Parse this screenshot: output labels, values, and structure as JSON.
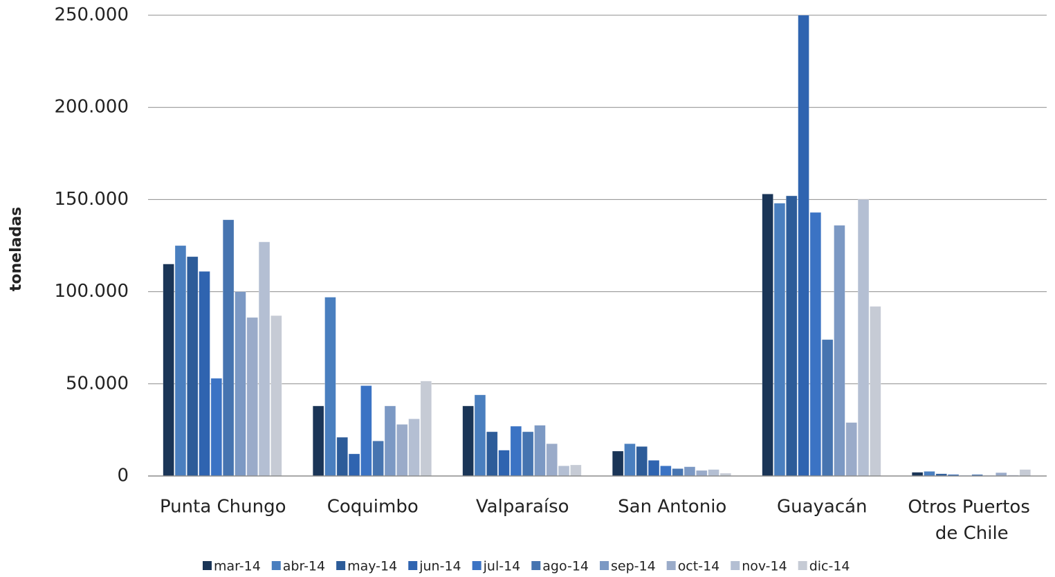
{
  "chart_data": {
    "type": "bar",
    "y_label": "toneladas",
    "categories": [
      "Punta Chungo",
      "Coquimbo",
      "Valparaíso",
      "San Antonio",
      "Guayacán",
      "Otros Puertos de Chile"
    ],
    "ylim": [
      0,
      250000
    ],
    "yticks": [
      0,
      {
        "value": 50000,
        "label": "50.000"
      },
      {
        "value": 100000,
        "label": "100.000"
      },
      {
        "value": 150000,
        "label": "150.000"
      },
      {
        "value": 200000,
        "label": "200.000"
      },
      {
        "value": 250000,
        "label": "250.000"
      }
    ],
    "grid": true,
    "legend": "bottom",
    "series": [
      {
        "name": "mar-14",
        "color": "#1a3557",
        "values": [
          115000,
          38000,
          38000,
          13500,
          153000,
          2000
        ]
      },
      {
        "name": "abr-14",
        "color": "#4a7fbf",
        "values": [
          125000,
          97000,
          44000,
          17500,
          148000,
          2500
        ]
      },
      {
        "name": "may-14",
        "color": "#2d5c99",
        "values": [
          119000,
          21000,
          24000,
          16000,
          152000,
          1200
        ]
      },
      {
        "name": "jun-14",
        "color": "#2f64b0",
        "values": [
          111000,
          12000,
          14000,
          8500,
          250000,
          800
        ]
      },
      {
        "name": "jul-14",
        "color": "#3b73c4",
        "values": [
          53000,
          49000,
          27000,
          5500,
          143000,
          300
        ]
      },
      {
        "name": "ago-14",
        "color": "#4674b0",
        "values": [
          139000,
          19000,
          24000,
          4000,
          74000,
          800
        ]
      },
      {
        "name": "sep-14",
        "color": "#7c99c4",
        "values": [
          100000,
          38000,
          27500,
          5000,
          136000,
          300
        ]
      },
      {
        "name": "oct-14",
        "color": "#9aabc9",
        "values": [
          86000,
          28000,
          17500,
          3000,
          29000,
          1800
        ]
      },
      {
        "name": "nov-14",
        "color": "#b4bfd3",
        "values": [
          127000,
          31000,
          5500,
          3500,
          150000,
          500
        ]
      },
      {
        "name": "dic-14",
        "color": "#c6cbd5",
        "values": [
          87000,
          51500,
          6000,
          1500,
          92000,
          3500
        ]
      }
    ]
  }
}
